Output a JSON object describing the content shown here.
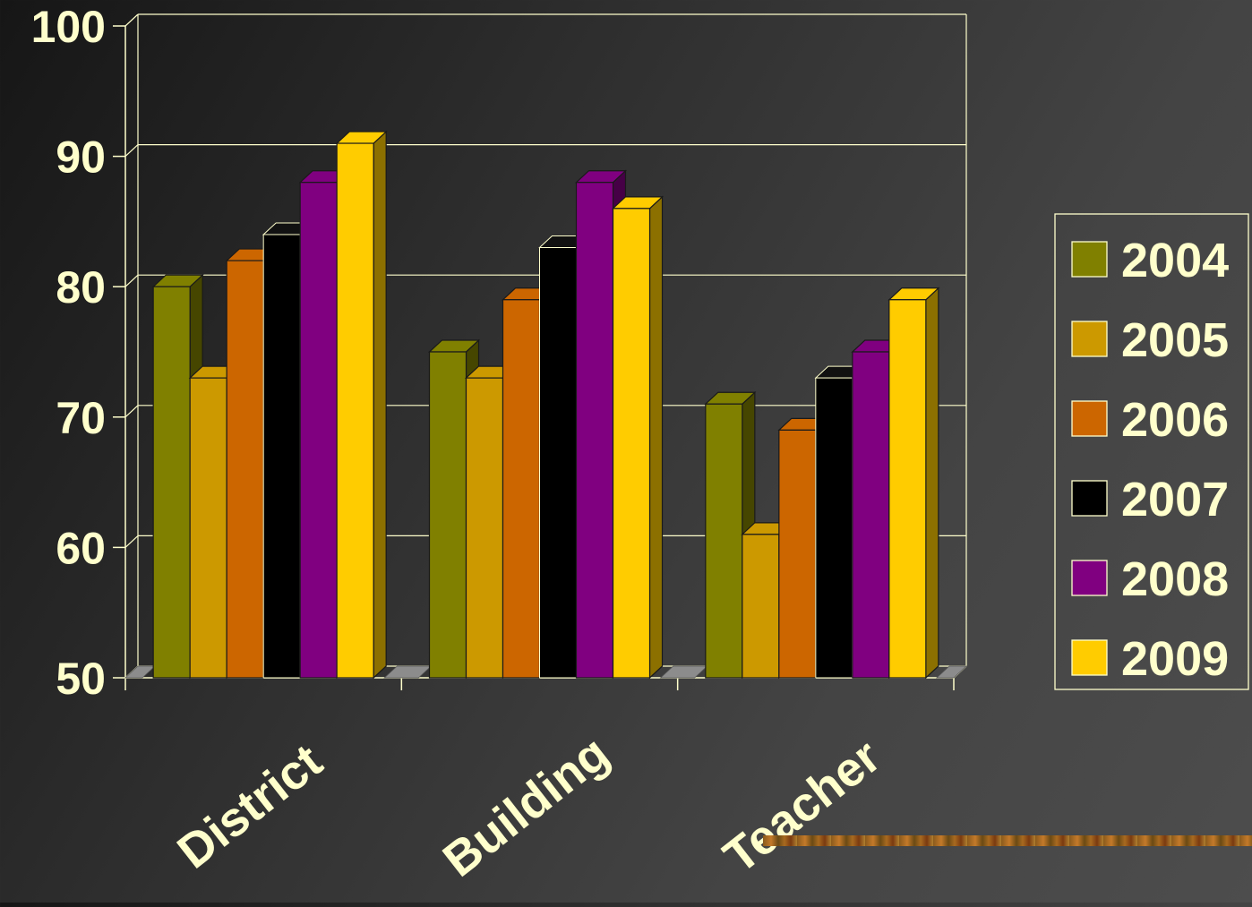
{
  "chart_data": {
    "type": "bar",
    "categories": [
      "District",
      "Building",
      "Teacher"
    ],
    "series": [
      {
        "name": "2004",
        "color": "#808000",
        "values": [
          80,
          75,
          71
        ]
      },
      {
        "name": "2005",
        "color": "#CC9900",
        "values": [
          73,
          73,
          61
        ]
      },
      {
        "name": "2006",
        "color": "#CC6600",
        "values": [
          82,
          79,
          69
        ]
      },
      {
        "name": "2007",
        "color": "#000000",
        "values": [
          84,
          83,
          73
        ]
      },
      {
        "name": "2008",
        "color": "#800080",
        "values": [
          88,
          88,
          75
        ]
      },
      {
        "name": "2009",
        "color": "#FFCC00",
        "values": [
          91,
          86,
          79
        ]
      }
    ],
    "yticks": [
      "50",
      "60",
      "70",
      "80",
      "90",
      "100"
    ],
    "ylim": [
      50,
      100
    ],
    "grid": true,
    "legend_position": "right",
    "text_color": "#FFFFCC",
    "grid_color": "#FFFFCC"
  }
}
